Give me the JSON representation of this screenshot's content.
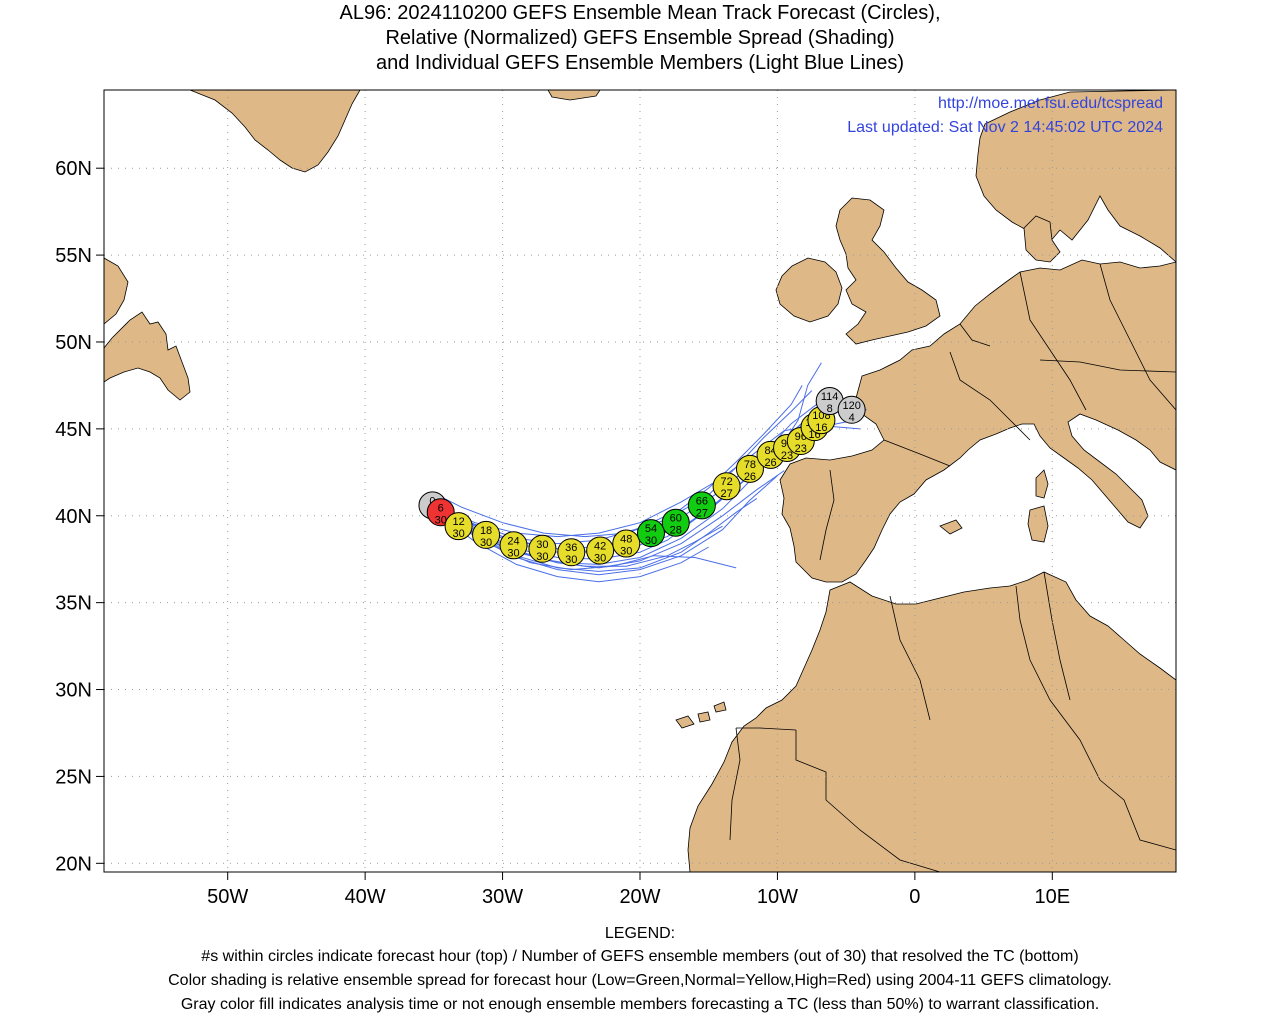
{
  "title": {
    "line1": "AL96: 2024110200 GEFS Ensemble Mean Track Forecast (Circles),",
    "line2": "Relative (Normalized) GEFS Ensemble Spread (Shading)",
    "line3": "and Individual GEFS Ensemble Members (Light Blue Lines)"
  },
  "header_links": {
    "url": "http://moe.met.fsu.edu/tcspread",
    "updated": "Last updated: Sat Nov 2 14:45:02 UTC 2024"
  },
  "axes": {
    "lat_ticks": [
      "60N",
      "55N",
      "50N",
      "45N",
      "40N",
      "35N",
      "30N",
      "25N",
      "20N"
    ],
    "lon_ticks": [
      "50W",
      "40W",
      "30W",
      "20W",
      "10W",
      "0",
      "10E"
    ],
    "lat_range": [
      19.5,
      64.5
    ],
    "lon_range": [
      -59,
      19
    ]
  },
  "colors": {
    "land": "#deb887",
    "member_lines": "#4a6ee8",
    "green": "#11cc11",
    "yellow": "#e6dc2a",
    "red": "#ee3333",
    "gray": "#cccccc",
    "link": "#3344dd"
  },
  "chart_data": {
    "type": "scatter",
    "description_units": "lon (deg E), lat (deg N)",
    "track": [
      {
        "hour": "0",
        "members": "30",
        "lon": -35.1,
        "lat": 40.6,
        "color": "gray"
      },
      {
        "hour": "6",
        "members": "30",
        "lon": -34.5,
        "lat": 40.2,
        "color": "red"
      },
      {
        "hour": "12",
        "members": "30",
        "lon": -33.2,
        "lat": 39.4,
        "color": "yellow"
      },
      {
        "hour": "18",
        "members": "30",
        "lon": -31.2,
        "lat": 38.9,
        "color": "yellow"
      },
      {
        "hour": "24",
        "members": "30",
        "lon": -29.2,
        "lat": 38.3,
        "color": "yellow"
      },
      {
        "hour": "30",
        "members": "30",
        "lon": -27.1,
        "lat": 38.1,
        "color": "yellow"
      },
      {
        "hour": "36",
        "members": "30",
        "lon": -25.0,
        "lat": 37.9,
        "color": "yellow"
      },
      {
        "hour": "42",
        "members": "30",
        "lon": -22.9,
        "lat": 38.0,
        "color": "yellow"
      },
      {
        "hour": "48",
        "members": "30",
        "lon": -21.0,
        "lat": 38.4,
        "color": "yellow"
      },
      {
        "hour": "54",
        "members": "30",
        "lon": -19.2,
        "lat": 39.0,
        "color": "green"
      },
      {
        "hour": "60",
        "members": "28",
        "lon": -17.4,
        "lat": 39.6,
        "color": "green"
      },
      {
        "hour": "66",
        "members": "27",
        "lon": -15.5,
        "lat": 40.6,
        "color": "green"
      },
      {
        "hour": "72",
        "members": "27",
        "lon": -13.7,
        "lat": 41.7,
        "color": "yellow"
      },
      {
        "hour": "78",
        "members": "26",
        "lon": -12.0,
        "lat": 42.7,
        "color": "yellow"
      },
      {
        "hour": "84",
        "members": "26",
        "lon": -10.5,
        "lat": 43.5,
        "color": "yellow"
      },
      {
        "hour": "90",
        "members": "23",
        "lon": -9.3,
        "lat": 43.9,
        "color": "yellow"
      },
      {
        "hour": "96",
        "members": "23",
        "lon": -8.3,
        "lat": 44.3,
        "color": "yellow"
      },
      {
        "hour": "102",
        "members": "16",
        "lon": -7.3,
        "lat": 45.1,
        "color": "yellow"
      },
      {
        "hour": "108",
        "members": "16",
        "lon": -6.8,
        "lat": 45.5,
        "color": "yellow"
      },
      {
        "hour": "114",
        "members": "8",
        "lon": -6.2,
        "lat": 46.6,
        "color": "gray"
      },
      {
        "hour": "120",
        "members": "4",
        "lon": -4.6,
        "lat": 46.1,
        "color": "gray"
      }
    ],
    "members": [
      [
        [
          -35,
          41.3
        ],
        [
          -33,
          40.5
        ],
        [
          -30,
          39.6
        ],
        [
          -27,
          39.0
        ],
        [
          -24,
          38.8
        ],
        [
          -21,
          39.0
        ],
        [
          -18,
          39.8
        ],
        [
          -15,
          41.2
        ],
        [
          -13,
          42.8
        ],
        [
          -11,
          44.5
        ],
        [
          -9,
          46.0
        ],
        [
          -7.5,
          47.2
        ]
      ],
      [
        [
          -35,
          40.7
        ],
        [
          -33,
          39.8
        ],
        [
          -30,
          38.8
        ],
        [
          -27,
          38.2
        ],
        [
          -24,
          37.9
        ],
        [
          -21,
          38.1
        ],
        [
          -18,
          38.8
        ],
        [
          -15,
          40.3
        ],
        [
          -12,
          42.3
        ],
        [
          -10,
          44.0
        ],
        [
          -8,
          45.5
        ],
        [
          -6,
          46.6
        ]
      ],
      [
        [
          -35,
          40.5
        ],
        [
          -33,
          39.4
        ],
        [
          -30,
          38.2
        ],
        [
          -27,
          37.5
        ],
        [
          -24,
          37.1
        ],
        [
          -21,
          37.1
        ],
        [
          -18,
          37.7
        ],
        [
          -16,
          38.5
        ],
        [
          -14,
          39.4
        ]
      ],
      [
        [
          -35,
          40.4
        ],
        [
          -32,
          38.8
        ],
        [
          -29,
          37.6
        ],
        [
          -26,
          36.9
        ],
        [
          -23,
          36.6
        ],
        [
          -20,
          36.9
        ],
        [
          -17,
          37.7
        ],
        [
          -14,
          39.2
        ],
        [
          -12,
          40.9
        ],
        [
          -10,
          42.3
        ]
      ],
      [
        [
          -35,
          40.6
        ],
        [
          -32,
          39.5
        ],
        [
          -29,
          38.7
        ],
        [
          -26,
          38.4
        ],
        [
          -23,
          38.6
        ],
        [
          -20,
          39.3
        ],
        [
          -17,
          40.4
        ],
        [
          -15,
          41.6
        ],
        [
          -13,
          43.1
        ],
        [
          -11,
          44.7
        ],
        [
          -9,
          46.4
        ],
        [
          -8.2,
          47.5
        ]
      ],
      [
        [
          -35,
          40.3
        ],
        [
          -32,
          38.5
        ],
        [
          -29,
          37.2
        ],
        [
          -26,
          36.5
        ],
        [
          -23,
          36.2
        ],
        [
          -20,
          36.5
        ],
        [
          -17,
          37.3
        ],
        [
          -15,
          38.2
        ]
      ],
      [
        [
          -35,
          40.5
        ],
        [
          -32,
          39.2
        ],
        [
          -29,
          38.1
        ],
        [
          -26,
          37.6
        ],
        [
          -23,
          37.5
        ],
        [
          -20,
          37.9
        ],
        [
          -18,
          38.6
        ],
        [
          -16,
          39.8
        ],
        [
          -13,
          41.6
        ],
        [
          -10,
          43.8
        ],
        [
          -8,
          45.4
        ],
        [
          -5.5,
          46.2
        ],
        [
          -3.5,
          46.1
        ]
      ],
      [
        [
          -35,
          40.5
        ],
        [
          -32,
          39.3
        ],
        [
          -29,
          38.4
        ],
        [
          -26,
          37.9
        ],
        [
          -23,
          38.0
        ],
        [
          -20,
          38.7
        ],
        [
          -17,
          39.9
        ],
        [
          -14,
          41.5
        ],
        [
          -11,
          43.6
        ],
        [
          -9,
          45.3
        ],
        [
          -7,
          46.5
        ]
      ],
      [
        [
          -35,
          40.4
        ],
        [
          -31,
          38.4
        ],
        [
          -28,
          37.3
        ],
        [
          -25,
          36.9
        ],
        [
          -22,
          37.1
        ],
        [
          -19,
          37.7
        ],
        [
          -16,
          37.6
        ],
        [
          -13,
          37.0
        ]
      ],
      [
        [
          -35,
          40.6
        ],
        [
          -32,
          39.6
        ],
        [
          -29,
          39.0
        ],
        [
          -26,
          38.8
        ],
        [
          -23,
          39.0
        ],
        [
          -20,
          39.6
        ],
        [
          -17,
          40.8
        ],
        [
          -14,
          42.2
        ],
        [
          -12,
          43.4
        ],
        [
          -9.5,
          44.9
        ],
        [
          -7,
          45.2
        ],
        [
          -4,
          45.0
        ]
      ],
      [
        [
          -35,
          40.5
        ],
        [
          -32,
          39.1
        ],
        [
          -29,
          38.0
        ],
        [
          -26,
          37.3
        ],
        [
          -23,
          37.0
        ],
        [
          -20,
          37.4
        ],
        [
          -17,
          38.4
        ],
        [
          -14,
          40.0
        ],
        [
          -11.5,
          41.5
        ],
        [
          -9.5,
          42.6
        ]
      ],
      [
        [
          -35,
          40.5
        ],
        [
          -32,
          39.0
        ],
        [
          -29,
          37.9
        ],
        [
          -26,
          37.3
        ],
        [
          -23,
          37.2
        ],
        [
          -20,
          37.6
        ],
        [
          -17,
          38.7
        ],
        [
          -14,
          40.4
        ],
        [
          -12,
          42.0
        ],
        [
          -10,
          43.7
        ],
        [
          -8.5,
          45.5
        ],
        [
          -7.8,
          47.5
        ],
        [
          -6.8,
          48.8
        ]
      ],
      [
        [
          -35,
          40.6
        ],
        [
          -32,
          39.4
        ],
        [
          -29,
          38.5
        ],
        [
          -26,
          38.1
        ],
        [
          -23,
          38.2
        ],
        [
          -20,
          38.6
        ],
        [
          -17,
          39.3
        ],
        [
          -15,
          40.4
        ],
        [
          -12.5,
          42.0
        ],
        [
          -10,
          43.7
        ],
        [
          -7.5,
          45.0
        ],
        [
          -5,
          45.4
        ]
      ],
      [
        [
          -35,
          40.4
        ],
        [
          -32,
          38.9
        ],
        [
          -29,
          37.7
        ],
        [
          -26,
          37.0
        ],
        [
          -23,
          36.8
        ],
        [
          -20,
          37.0
        ],
        [
          -17,
          37.9
        ],
        [
          -15,
          39.0
        ],
        [
          -13,
          40.2
        ],
        [
          -11.5,
          41.0
        ]
      ]
    ]
  }
}
